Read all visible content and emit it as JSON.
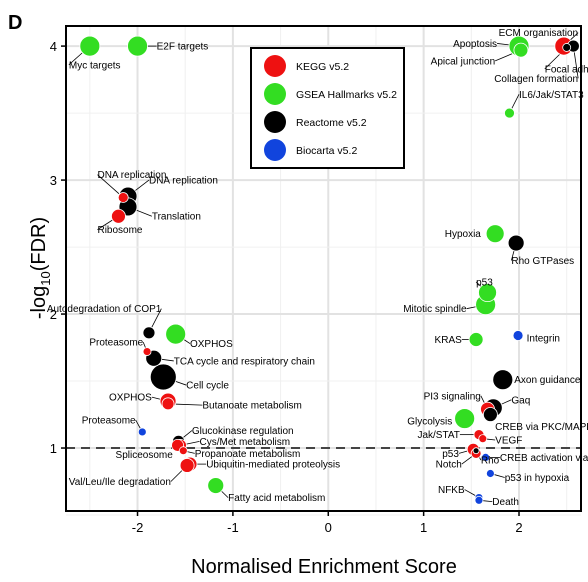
{
  "panel_label": "D",
  "chart_data": {
    "type": "scatter",
    "xlabel": "Normalised Enrichment Score",
    "ylabel_main": "-log",
    "ylabel_sub": "10",
    "ylabel_tail": "(FDR)",
    "xlim": [
      -2.75,
      2.65
    ],
    "ylim": [
      0.53,
      4.15
    ],
    "x_ticks": [
      -2,
      -1,
      0,
      1,
      2
    ],
    "y_ticks": [
      1,
      2,
      3,
      4
    ],
    "grid": true,
    "threshold_y": 1,
    "legend": {
      "placement": "top-center",
      "entries": [
        {
          "name": "KEGG v5.2",
          "color": "#ee1111"
        },
        {
          "name": "GSEA Hallmarks v5.2",
          "color": "#33dd22"
        },
        {
          "name": "Reactome v5.2",
          "color": "#000000"
        },
        {
          "name": "Biocarta v5.2",
          "color": "#1144dd"
        }
      ]
    },
    "points": [
      {
        "label": "Myc targets",
        "x": -2.5,
        "y": 4.0,
        "db": 1,
        "r": 10,
        "lx": -2.72,
        "ly": 3.86,
        "anchor": "start"
      },
      {
        "label": "E2F targets",
        "x": -2.0,
        "y": 4.0,
        "db": 1,
        "r": 10,
        "lx": -1.8,
        "ly": 4.0,
        "anchor": "start"
      },
      {
        "label": "DNA replication",
        "x": -2.15,
        "y": 2.87,
        "db": 0,
        "r": 5,
        "lx": -2.42,
        "ly": 3.04,
        "anchor": "start"
      },
      {
        "label": "DNA replication",
        "x": -2.1,
        "y": 2.88,
        "db": 2,
        "r": 9,
        "lx": -1.88,
        "ly": 3.0,
        "anchor": "start"
      },
      {
        "label": "Translation",
        "x": -2.1,
        "y": 2.8,
        "db": 2,
        "r": 9,
        "lx": -1.85,
        "ly": 2.73,
        "anchor": "start"
      },
      {
        "label": "Ribosome",
        "x": -2.2,
        "y": 2.73,
        "db": 0,
        "r": 7,
        "lx": -2.42,
        "ly": 2.63,
        "anchor": "start"
      },
      {
        "label": "Autodegradation of COP1",
        "x": -1.88,
        "y": 1.86,
        "db": 2,
        "r": 6,
        "lx": -1.75,
        "ly": 2.04,
        "anchor": "end"
      },
      {
        "label": "OXPHOS",
        "x": -1.6,
        "y": 1.85,
        "db": 1,
        "r": 10,
        "lx": -1.45,
        "ly": 1.78,
        "anchor": "start"
      },
      {
        "label": "Proteasome",
        "x": -1.9,
        "y": 1.72,
        "db": 0,
        "r": 4,
        "lx": -1.94,
        "ly": 1.79,
        "anchor": "end"
      },
      {
        "label": "TCA cycle and respiratory chain",
        "x": -1.83,
        "y": 1.67,
        "db": 2,
        "r": 8,
        "lx": -1.62,
        "ly": 1.65,
        "anchor": "start"
      },
      {
        "label": "Cell cycle",
        "x": -1.73,
        "y": 1.53,
        "db": 2,
        "r": 13,
        "lx": -1.49,
        "ly": 1.47,
        "anchor": "start"
      },
      {
        "label": "OXPHOS",
        "x": -1.68,
        "y": 1.35,
        "db": 0,
        "r": 8,
        "lx": -1.85,
        "ly": 1.38,
        "anchor": "end"
      },
      {
        "label": "Butanoate metabolism",
        "x": -1.68,
        "y": 1.33,
        "db": 0,
        "r": 6,
        "lx": -1.32,
        "ly": 1.32,
        "anchor": "start"
      },
      {
        "label": "Proteasome",
        "x": -1.95,
        "y": 1.12,
        "db": 3,
        "r": 4,
        "lx": -2.02,
        "ly": 1.21,
        "anchor": "end"
      },
      {
        "label": "Glucokinase regulation",
        "x": -1.57,
        "y": 1.05,
        "db": 2,
        "r": 6,
        "lx": -1.43,
        "ly": 1.13,
        "anchor": "start"
      },
      {
        "label": "Cys/Met metabolism",
        "x": -1.55,
        "y": 1.02,
        "db": 0,
        "r": 6,
        "lx": -1.35,
        "ly": 1.05,
        "anchor": "start"
      },
      {
        "label": "Spliceosome",
        "x": -1.58,
        "y": 1.02,
        "db": 0,
        "r": 6,
        "lx": -1.63,
        "ly": 0.95,
        "anchor": "end"
      },
      {
        "label": "Propanoate metabolism",
        "x": -1.52,
        "y": 0.98,
        "db": 0,
        "r": 4,
        "lx": -1.4,
        "ly": 0.96,
        "anchor": "start"
      },
      {
        "label": "Ubiquitin-mediated proteolysis",
        "x": -1.45,
        "y": 0.88,
        "db": 0,
        "r": 7,
        "lx": -1.28,
        "ly": 0.88,
        "anchor": "start"
      },
      {
        "label": "Val/Leu/Ile degradation",
        "x": -1.48,
        "y": 0.87,
        "db": 0,
        "r": 7,
        "lx": -1.65,
        "ly": 0.75,
        "anchor": "end"
      },
      {
        "label": "Fatty acid metabolism",
        "x": -1.18,
        "y": 0.72,
        "db": 1,
        "r": 8,
        "lx": -1.05,
        "ly": 0.63,
        "anchor": "start"
      },
      {
        "label": "ECM organisation",
        "x": 2.47,
        "y": 4.0,
        "db": 0,
        "r": 9,
        "lx": 2.62,
        "ly": 4.1,
        "anchor": "end"
      },
      {
        "label": "Apoptosis",
        "x": 2.0,
        "y": 4.0,
        "db": 1,
        "r": 10,
        "lx": 1.77,
        "ly": 4.02,
        "anchor": "end"
      },
      {
        "label": "Collagen formation",
        "x": 2.57,
        "y": 4.0,
        "db": 2,
        "r": 6,
        "lx": 2.62,
        "ly": 3.76,
        "anchor": "end"
      },
      {
        "label": "Apical junction",
        "x": 2.02,
        "y": 3.97,
        "db": 1,
        "r": 7,
        "lx": 1.75,
        "ly": 3.89,
        "anchor": "end"
      },
      {
        "label": "Focal adhesion",
        "x": 2.5,
        "y": 3.99,
        "db": 2,
        "r": 4,
        "lx": 2.27,
        "ly": 3.83,
        "anchor": "start"
      },
      {
        "label": "IL6/Jak/STAT3",
        "x": 1.9,
        "y": 3.5,
        "db": 1,
        "r": 5,
        "lx": 2.0,
        "ly": 3.64,
        "anchor": "start"
      },
      {
        "label": "Hypoxia",
        "x": 1.75,
        "y": 2.6,
        "db": 1,
        "r": 9,
        "lx": 1.6,
        "ly": 2.6,
        "anchor": "end"
      },
      {
        "label": "Rho GTPases",
        "x": 1.97,
        "y": 2.53,
        "db": 2,
        "r": 8,
        "lx": 1.92,
        "ly": 2.4,
        "anchor": "start"
      },
      {
        "label": "p53",
        "x": 1.67,
        "y": 2.16,
        "db": 1,
        "r": 9,
        "lx": 1.55,
        "ly": 2.24,
        "anchor": "start"
      },
      {
        "label": "Mitotic spindle",
        "x": 1.65,
        "y": 2.07,
        "db": 1,
        "r": 10,
        "lx": 1.45,
        "ly": 2.04,
        "anchor": "end"
      },
      {
        "label": "KRAS",
        "x": 1.55,
        "y": 1.81,
        "db": 1,
        "r": 7,
        "lx": 1.4,
        "ly": 1.81,
        "anchor": "end"
      },
      {
        "label": "Integrin",
        "x": 1.99,
        "y": 1.84,
        "db": 3,
        "r": 5,
        "lx": 2.08,
        "ly": 1.82,
        "anchor": "start"
      },
      {
        "label": "Axon guidance",
        "x": 1.83,
        "y": 1.51,
        "db": 2,
        "r": 10,
        "lx": 1.95,
        "ly": 1.51,
        "anchor": "start"
      },
      {
        "label": "PI3 signaling",
        "x": 1.67,
        "y": 1.29,
        "db": 0,
        "r": 7,
        "lx": 1.6,
        "ly": 1.39,
        "anchor": "end"
      },
      {
        "label": "Gaq",
        "x": 1.73,
        "y": 1.3,
        "db": 2,
        "r": 9,
        "lx": 1.92,
        "ly": 1.36,
        "anchor": "start"
      },
      {
        "label": "Glycolysis",
        "x": 1.43,
        "y": 1.22,
        "db": 1,
        "r": 10,
        "lx": 1.3,
        "ly": 1.2,
        "anchor": "end"
      },
      {
        "label": "CREB via PKC/MAPK",
        "x": 1.7,
        "y": 1.25,
        "db": 2,
        "r": 7,
        "lx": 1.75,
        "ly": 1.16,
        "anchor": "start"
      },
      {
        "label": "Jak/STAT",
        "x": 1.58,
        "y": 1.1,
        "db": 0,
        "r": 5,
        "lx": 1.38,
        "ly": 1.1,
        "anchor": "end"
      },
      {
        "label": "VEGF",
        "x": 1.62,
        "y": 1.07,
        "db": 0,
        "r": 4,
        "lx": 1.75,
        "ly": 1.06,
        "anchor": "start"
      },
      {
        "label": "p53",
        "x": 1.52,
        "y": 0.99,
        "db": 0,
        "r": 6,
        "lx": 1.37,
        "ly": 0.96,
        "anchor": "end"
      },
      {
        "label": "Rho",
        "x": 1.55,
        "y": 0.98,
        "db": 2,
        "r": 3,
        "lx": 1.6,
        "ly": 0.91,
        "anchor": "start"
      },
      {
        "label": "Notch",
        "x": 1.55,
        "y": 0.96,
        "db": 0,
        "r": 5,
        "lx": 1.4,
        "ly": 0.88,
        "anchor": "end"
      },
      {
        "label": "CREB activation via Ras",
        "x": 1.65,
        "y": 0.93,
        "db": 3,
        "r": 4,
        "lx": 1.8,
        "ly": 0.93,
        "anchor": "start"
      },
      {
        "label": "p53 in hypoxia",
        "x": 1.7,
        "y": 0.81,
        "db": 3,
        "r": 4,
        "lx": 1.85,
        "ly": 0.78,
        "anchor": "start"
      },
      {
        "label": "NFKB",
        "x": 1.58,
        "y": 0.63,
        "db": 3,
        "r": 4,
        "lx": 1.43,
        "ly": 0.69,
        "anchor": "end"
      },
      {
        "label": "Death",
        "x": 1.58,
        "y": 0.61,
        "db": 3,
        "r": 4,
        "lx": 1.72,
        "ly": 0.6,
        "anchor": "start"
      }
    ]
  }
}
